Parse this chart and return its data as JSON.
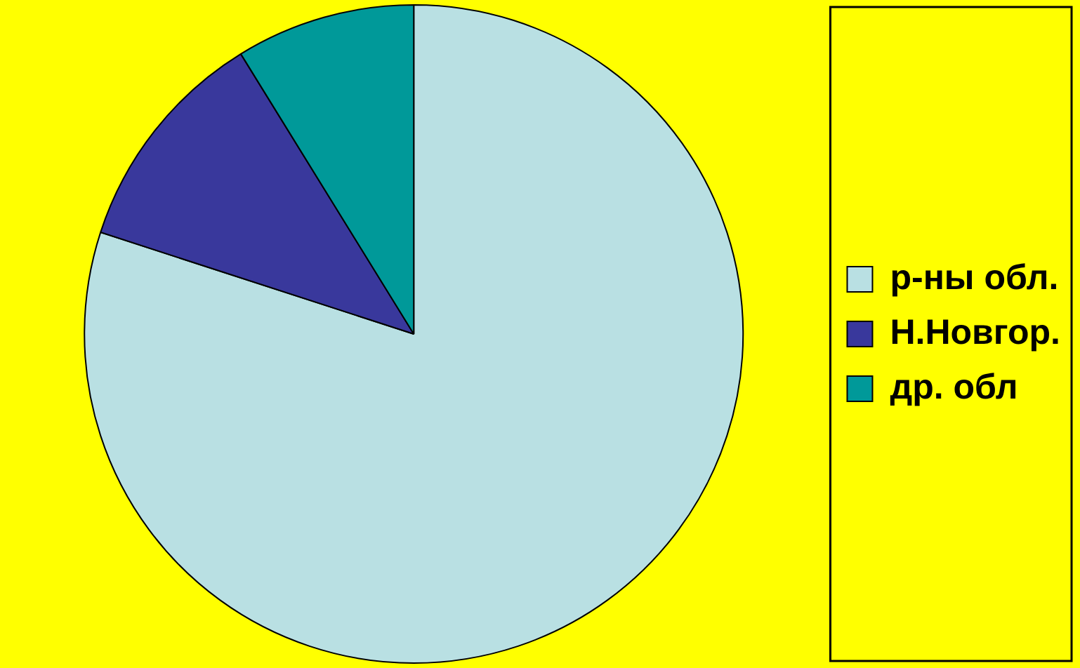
{
  "chart_data": {
    "type": "pie",
    "categories": [
      "р-ны обл.",
      "Н.Новгор.",
      "др. обл"
    ],
    "values": [
      80,
      11.2,
      8.8
    ],
    "colors": [
      "#b9e0e3",
      "#39389c",
      "#009999"
    ],
    "legend": "right"
  }
}
